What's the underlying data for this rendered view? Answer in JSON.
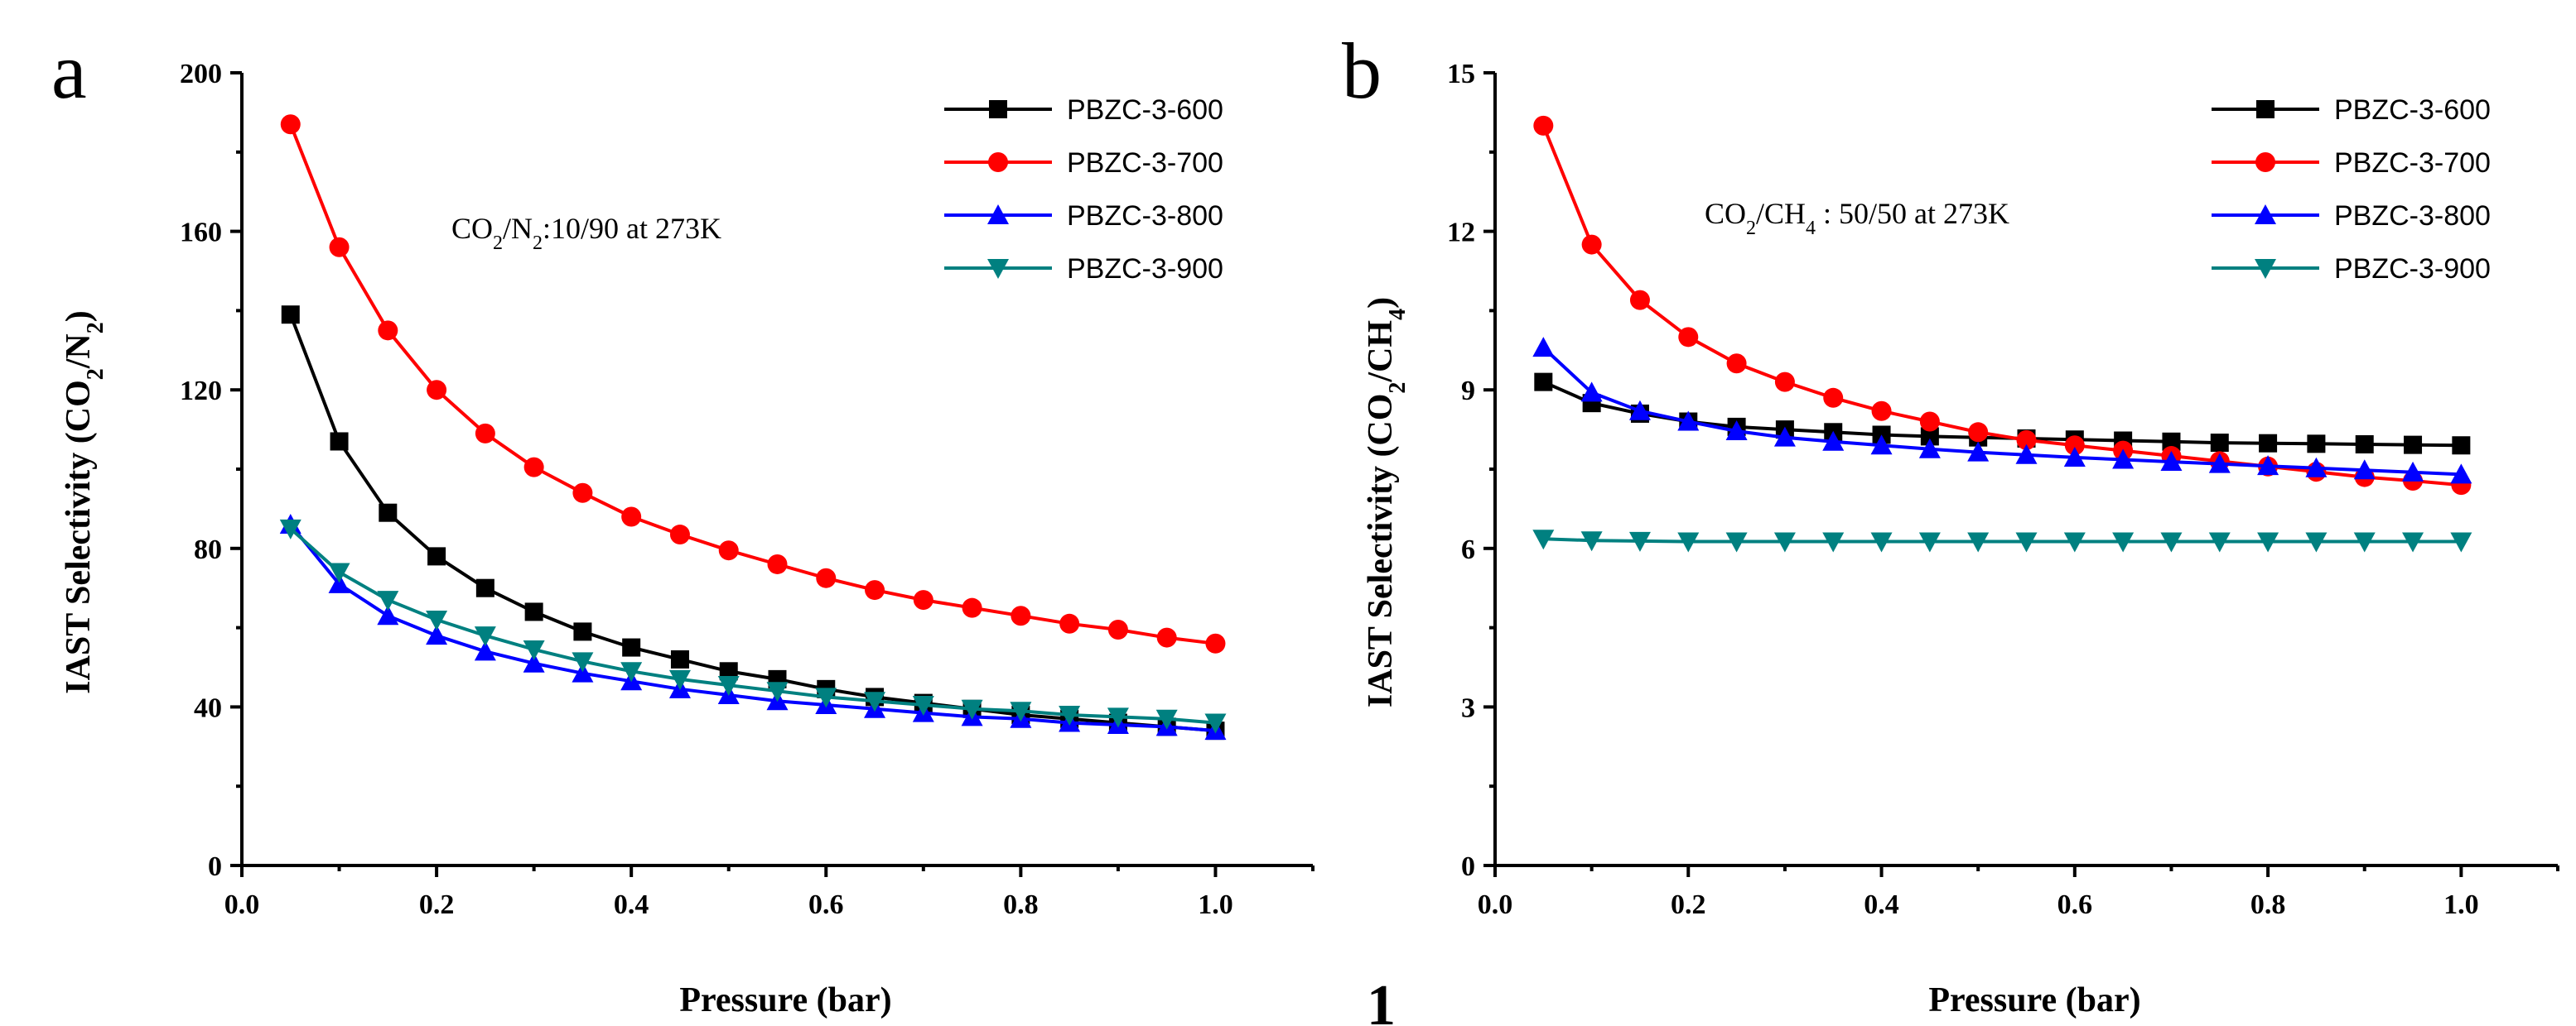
{
  "chart_data": [
    {
      "type": "line",
      "panel_label": "a",
      "title": "",
      "annotation": {
        "prefix": "CO",
        "sub1": "2",
        "mid": "/N",
        "sub2": "2",
        "suffix": ":10/90 at 273K"
      },
      "xlabel": "Pressure (bar)",
      "ylabel": {
        "prefix": "IAST Selectivity (CO",
        "sub1": "2",
        "mid": "/N",
        "sub2": "2",
        "suffix": ")"
      },
      "xlim": [
        0.0,
        1.1
      ],
      "ylim": [
        0,
        200
      ],
      "xticks": [
        0.0,
        0.2,
        0.4,
        0.6,
        0.8,
        1.0
      ],
      "xtick_labels": [
        "0.0",
        "0.2",
        "0.4",
        "0.6",
        "0.8",
        "1.0"
      ],
      "yticks": [
        0,
        40,
        80,
        120,
        160,
        200
      ],
      "ytick_labels": [
        "0",
        "40",
        "80",
        "120",
        "160",
        "200"
      ],
      "legend_position": "top-right",
      "x": [
        0.05,
        0.1,
        0.15,
        0.2,
        0.25,
        0.3,
        0.35,
        0.4,
        0.45,
        0.5,
        0.55,
        0.6,
        0.65,
        0.7,
        0.75,
        0.8,
        0.85,
        0.9,
        0.95,
        1.0
      ],
      "series": [
        {
          "name": "PBZC-3-600",
          "color": "#000000",
          "marker": "square",
          "values": [
            139,
            107,
            89,
            78,
            70,
            64,
            59,
            55,
            52,
            49,
            47,
            44.5,
            42.5,
            41,
            39.5,
            38,
            37,
            36,
            35,
            34
          ]
        },
        {
          "name": "PBZC-3-700",
          "color": "#ff0000",
          "marker": "circle",
          "values": [
            187,
            156,
            135,
            120,
            109,
            100.5,
            94,
            88,
            83.5,
            79.5,
            76,
            72.5,
            69.5,
            67,
            65,
            63,
            61,
            59.5,
            57.5,
            56
          ]
        },
        {
          "name": "PBZC-3-800",
          "color": "#0000ff",
          "marker": "triangle-up",
          "values": [
            86,
            71,
            63,
            58,
            54,
            51,
            48.5,
            46.5,
            44.5,
            43,
            41.5,
            40.5,
            39.5,
            38.5,
            37.5,
            37,
            36,
            35.5,
            35,
            34
          ]
        },
        {
          "name": "PBZC-3-900",
          "color": "#008080",
          "marker": "triangle-down",
          "values": [
            85,
            74,
            67,
            62,
            58,
            54.5,
            51.5,
            49,
            47,
            45.5,
            44,
            42.5,
            41.5,
            40.5,
            39.5,
            39,
            38,
            37.5,
            37,
            36
          ]
        }
      ]
    },
    {
      "type": "line",
      "panel_label": "b",
      "title": "",
      "annotation": {
        "prefix": "CO",
        "sub1": "2",
        "mid": "/CH",
        "sub2": "4",
        "suffix": " : 50/50 at 273K"
      },
      "xlabel": "Pressure (bar)",
      "ylabel": {
        "prefix": "IAST Selectivity (CO",
        "sub1": "2",
        "mid": "/CH",
        "sub2": "4",
        "suffix": ")"
      },
      "xlim": [
        0.0,
        1.1
      ],
      "ylim": [
        0,
        15
      ],
      "xticks": [
        0.0,
        0.2,
        0.4,
        0.6,
        0.8,
        1.0
      ],
      "xtick_labels": [
        "0.0",
        "0.2",
        "0.4",
        "0.6",
        "0.8",
        "1.0"
      ],
      "yticks": [
        0,
        3,
        6,
        9,
        12,
        15
      ],
      "ytick_labels": [
        "0",
        "3",
        "6",
        "9",
        "12",
        "15"
      ],
      "legend_position": "top-right",
      "x": [
        0.05,
        0.1,
        0.15,
        0.2,
        0.25,
        0.3,
        0.35,
        0.4,
        0.45,
        0.5,
        0.55,
        0.6,
        0.65,
        0.7,
        0.75,
        0.8,
        0.85,
        0.9,
        0.95,
        1.0
      ],
      "series": [
        {
          "name": "PBZC-3-600",
          "color": "#000000",
          "marker": "square",
          "values": [
            9.15,
            8.75,
            8.55,
            8.4,
            8.3,
            8.25,
            8.2,
            8.15,
            8.12,
            8.1,
            8.08,
            8.06,
            8.04,
            8.02,
            8.0,
            7.99,
            7.98,
            7.97,
            7.96,
            7.95
          ]
        },
        {
          "name": "PBZC-3-700",
          "color": "#ff0000",
          "marker": "circle",
          "values": [
            14.0,
            11.75,
            10.7,
            10.0,
            9.5,
            9.15,
            8.85,
            8.6,
            8.4,
            8.2,
            8.05,
            7.95,
            7.85,
            7.75,
            7.65,
            7.55,
            7.45,
            7.35,
            7.28,
            7.2
          ]
        },
        {
          "name": "PBZC-3-800",
          "color": "#0000ff",
          "marker": "triangle-up",
          "values": [
            9.8,
            8.95,
            8.6,
            8.4,
            8.22,
            8.1,
            8.02,
            7.95,
            7.88,
            7.82,
            7.77,
            7.72,
            7.68,
            7.64,
            7.6,
            7.56,
            7.52,
            7.48,
            7.44,
            7.4
          ]
        },
        {
          "name": "PBZC-3-900",
          "color": "#008080",
          "marker": "triangle-down",
          "values": [
            6.18,
            6.15,
            6.14,
            6.13,
            6.13,
            6.13,
            6.13,
            6.13,
            6.13,
            6.13,
            6.13,
            6.13,
            6.13,
            6.13,
            6.13,
            6.13,
            6.13,
            6.13,
            6.13,
            6.13
          ]
        }
      ]
    }
  ],
  "footer_mark": "1"
}
